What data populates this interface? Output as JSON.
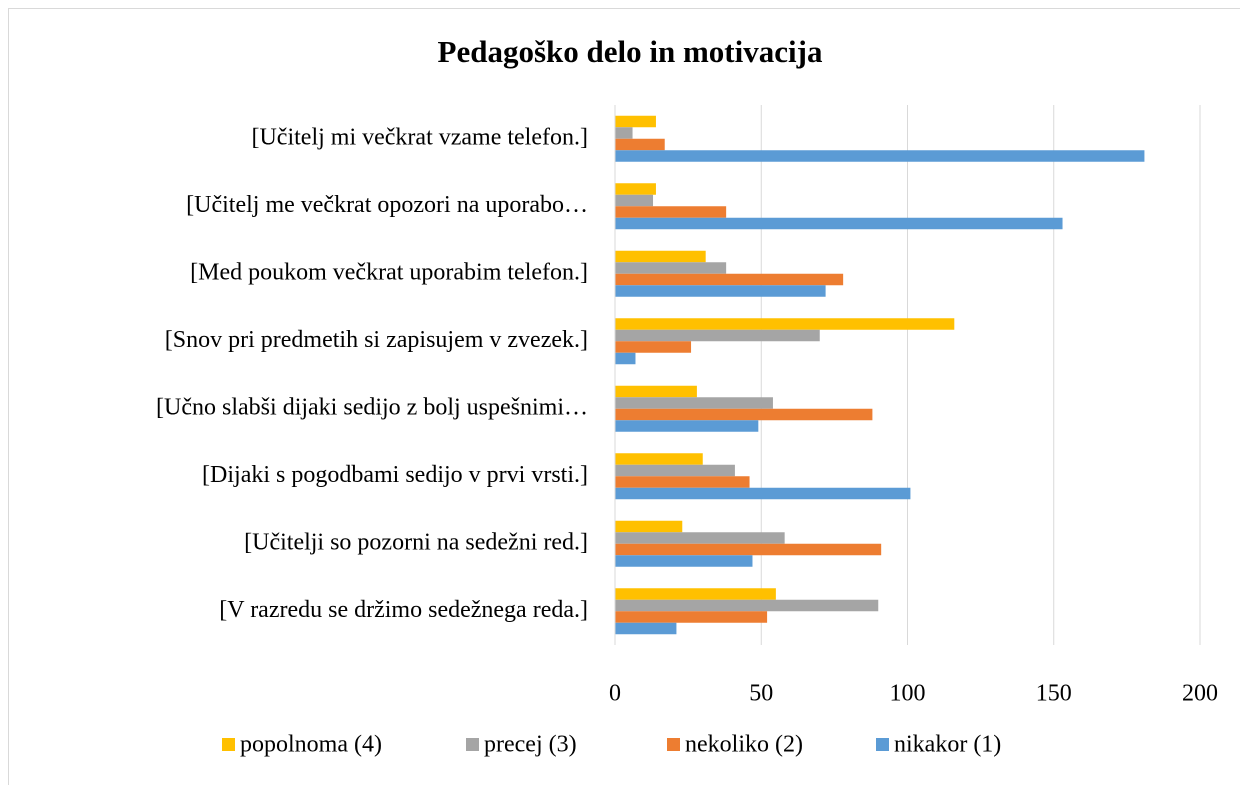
{
  "chart_data": {
    "type": "bar",
    "orientation": "horizontal",
    "title": "Pedagoško delo in motivacija",
    "categories": [
      "[Učitelj mi večkrat vzame telefon.]",
      "[Učitelj me večkrat opozori na uporabo…",
      "[Med poukom večkrat uporabim telefon.]",
      "[Snov pri predmetih si zapisujem v zvezek.]",
      "[Učno slabši dijaki sedijo z bolj uspešnimi…",
      "[Dijaki s pogodbami sedijo v prvi vrsti.]",
      "[Učitelji so pozorni na sedežni red.]",
      "[V razredu se držimo sedežnega reda.]"
    ],
    "series": [
      {
        "name": "popolnoma (4)",
        "color": "#ffc000",
        "values": [
          14,
          14,
          31,
          116,
          28,
          30,
          23,
          55
        ]
      },
      {
        "name": "precej (3)",
        "color": "#a5a5a5",
        "values": [
          6,
          13,
          38,
          70,
          54,
          41,
          58,
          90
        ]
      },
      {
        "name": "nekoliko (2)",
        "color": "#ed7d31",
        "values": [
          17,
          38,
          78,
          26,
          88,
          46,
          91,
          52
        ]
      },
      {
        "name": "nikakor (1)",
        "color": "#5b9bd5",
        "values": [
          181,
          153,
          72,
          7,
          49,
          101,
          47,
          21
        ]
      }
    ],
    "xlim": [
      0,
      200
    ],
    "xticks": [
      0,
      50,
      100,
      150,
      200
    ],
    "grid": true,
    "legend": "bottom"
  }
}
